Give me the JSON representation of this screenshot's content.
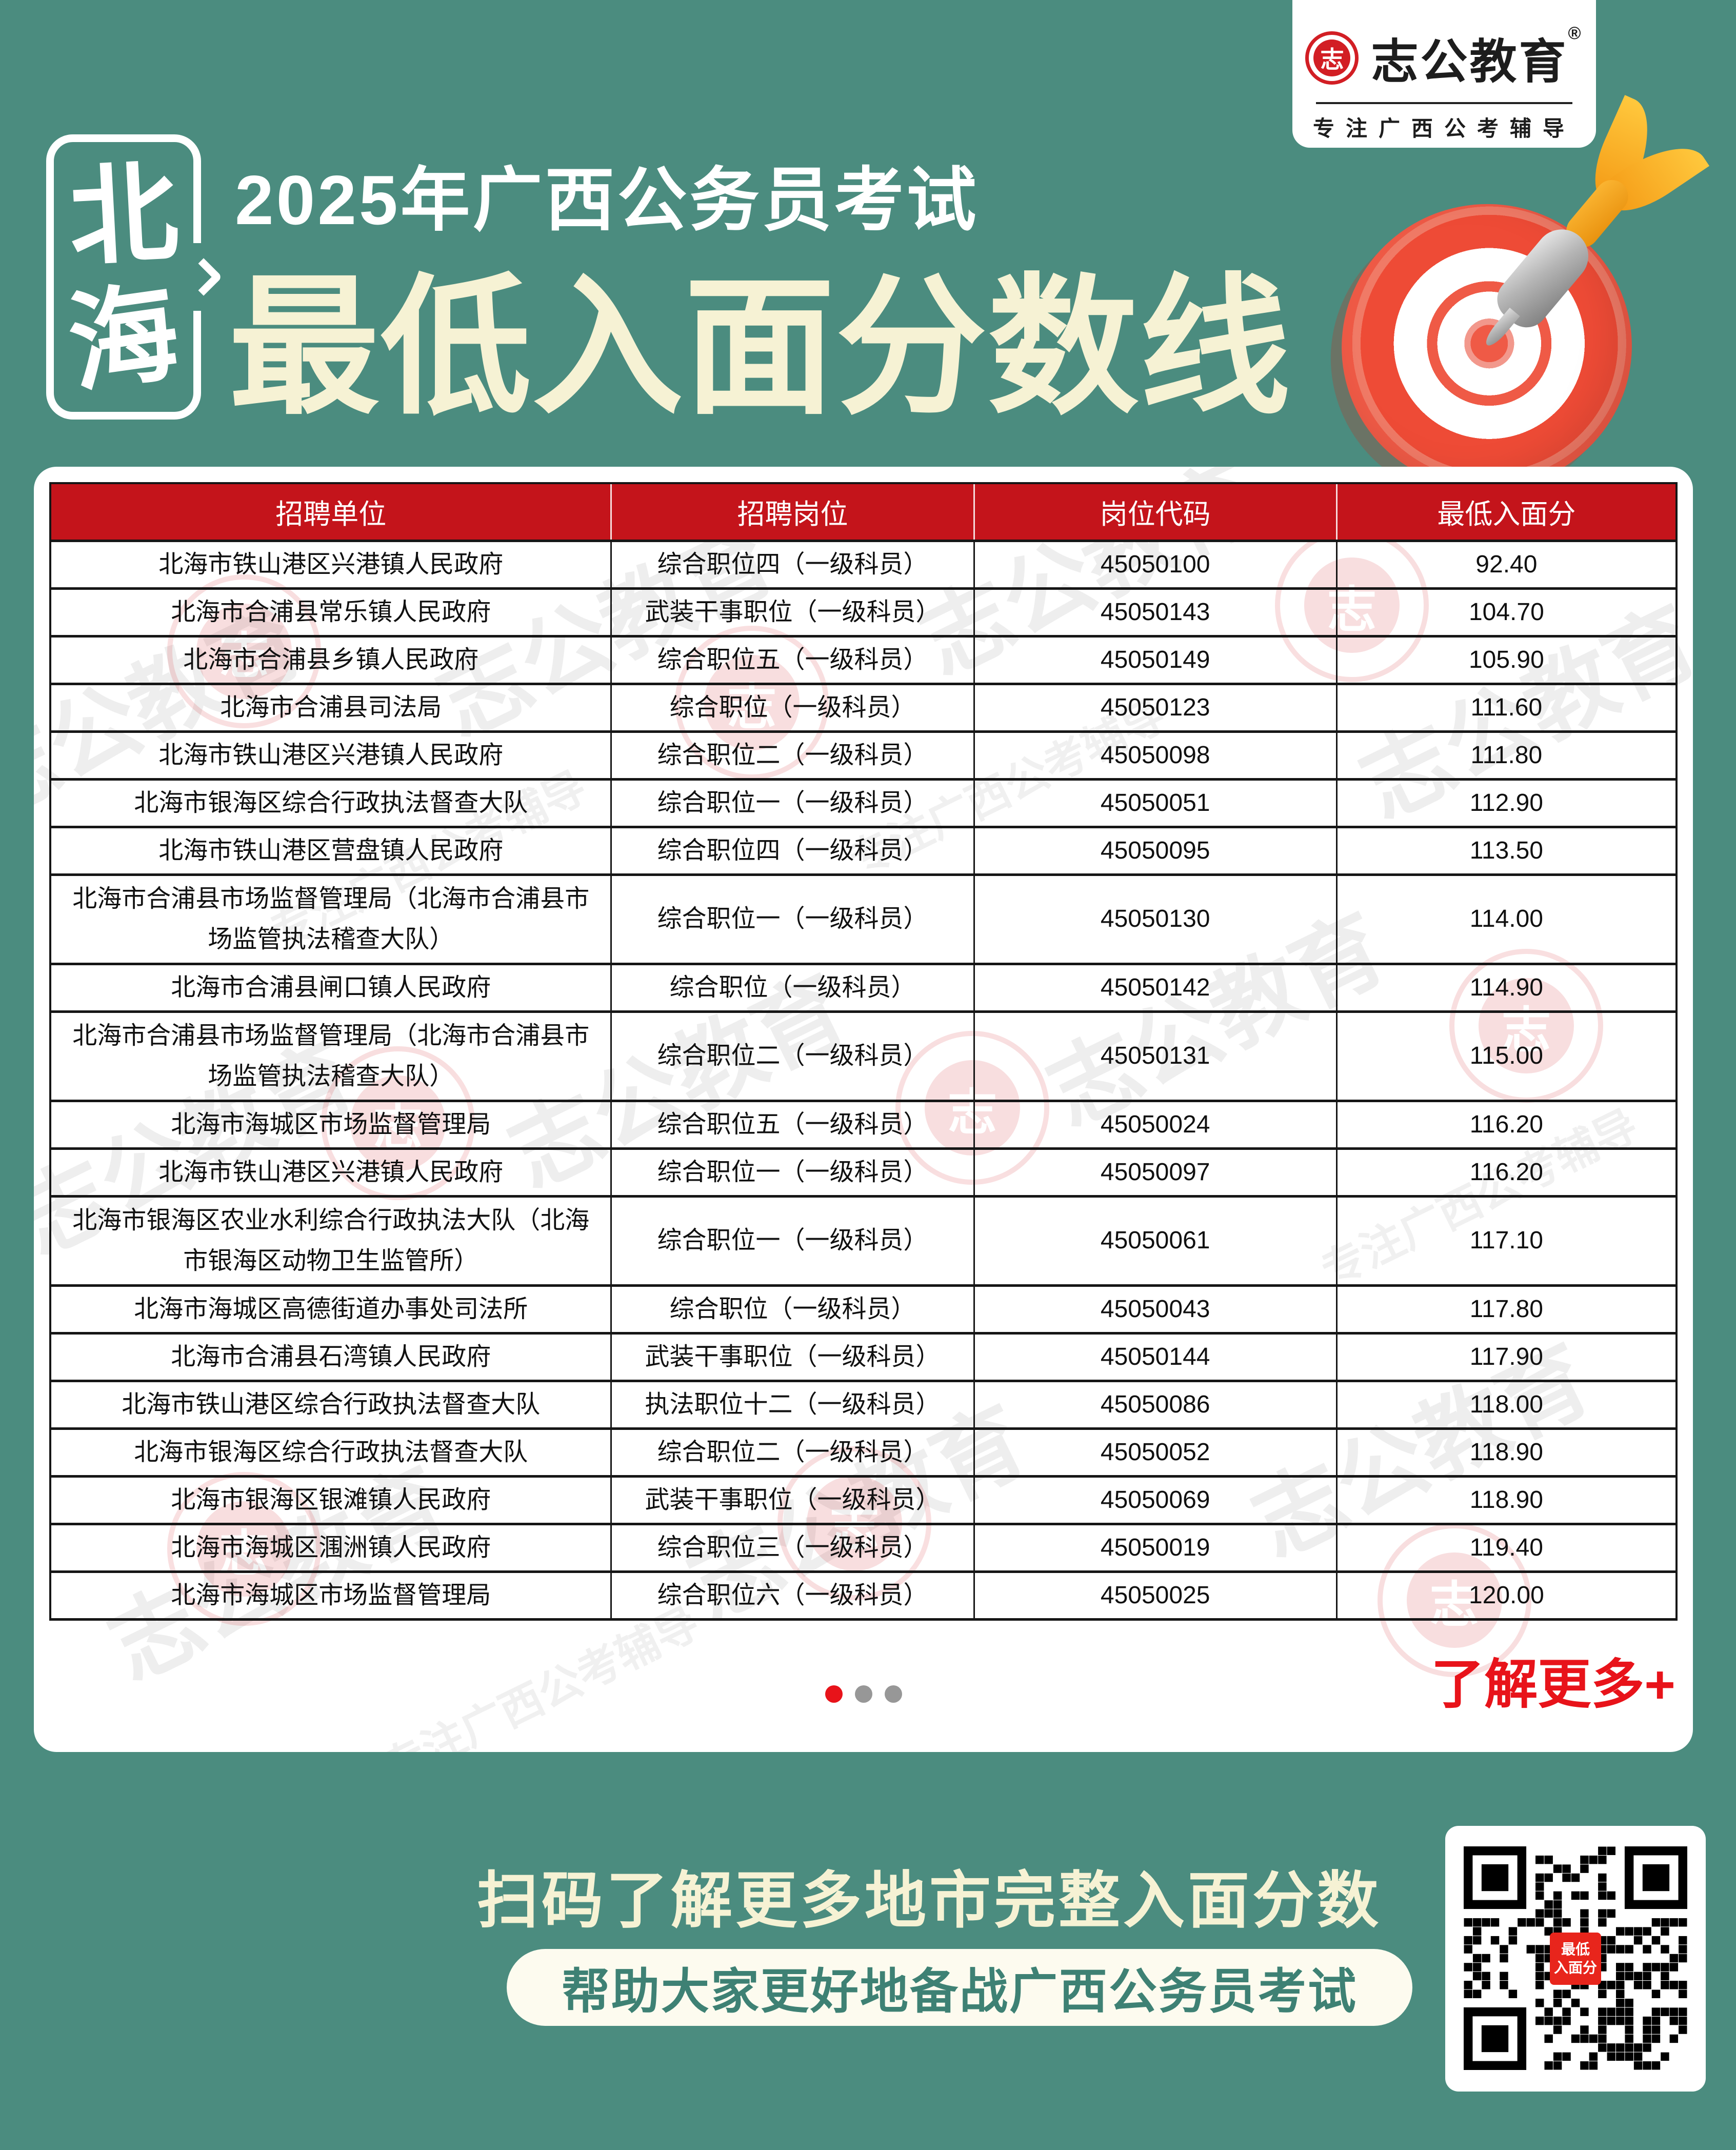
{
  "brand": {
    "name": "志公教育",
    "reg": "®",
    "tagline": "专注广西公考辅导",
    "seal_char": "志"
  },
  "header": {
    "city_chars": [
      "北",
      "海"
    ],
    "title_line1": "2025年广西公务员考试",
    "title_line2": "最低入面分数线"
  },
  "table": {
    "columns": [
      "招聘单位",
      "招聘岗位",
      "岗位代码",
      "最低入面分"
    ],
    "rows": [
      {
        "unit": "北海市铁山港区兴港镇人民政府",
        "post": "综合职位四（一级科员）",
        "code": "45050100",
        "score": "92.40"
      },
      {
        "unit": "北海市合浦县常乐镇人民政府",
        "post": "武装干事职位（一级科员）",
        "code": "45050143",
        "score": "104.70"
      },
      {
        "unit": "北海市合浦县乡镇人民政府",
        "post": "综合职位五（一级科员）",
        "code": "45050149",
        "score": "105.90"
      },
      {
        "unit": "北海市合浦县司法局",
        "post": "综合职位（一级科员）",
        "code": "45050123",
        "score": "111.60"
      },
      {
        "unit": "北海市铁山港区兴港镇人民政府",
        "post": "综合职位二（一级科员）",
        "code": "45050098",
        "score": "111.80"
      },
      {
        "unit": "北海市银海区综合行政执法督查大队",
        "post": "综合职位一（一级科员）",
        "code": "45050051",
        "score": "112.90"
      },
      {
        "unit": "北海市铁山港区营盘镇人民政府",
        "post": "综合职位四（一级科员）",
        "code": "45050095",
        "score": "113.50"
      },
      {
        "unit": "北海市合浦县市场监督管理局（北海市合浦县市场监管执法稽查大队）",
        "post": "综合职位一（一级科员）",
        "code": "45050130",
        "score": "114.00"
      },
      {
        "unit": "北海市合浦县闸口镇人民政府",
        "post": "综合职位（一级科员）",
        "code": "45050142",
        "score": "114.90"
      },
      {
        "unit": "北海市合浦县市场监督管理局（北海市合浦县市场监管执法稽查大队）",
        "post": "综合职位二（一级科员）",
        "code": "45050131",
        "score": "115.00"
      },
      {
        "unit": "北海市海城区市场监督管理局",
        "post": "综合职位五（一级科员）",
        "code": "45050024",
        "score": "116.20"
      },
      {
        "unit": "北海市铁山港区兴港镇人民政府",
        "post": "综合职位一（一级科员）",
        "code": "45050097",
        "score": "116.20"
      },
      {
        "unit": "北海市银海区农业水利综合行政执法大队（北海市银海区动物卫生监管所）",
        "post": "综合职位一（一级科员）",
        "code": "45050061",
        "score": "117.10"
      },
      {
        "unit": "北海市海城区高德街道办事处司法所",
        "post": "综合职位（一级科员）",
        "code": "45050043",
        "score": "117.80"
      },
      {
        "unit": "北海市合浦县石湾镇人民政府",
        "post": "武装干事职位（一级科员）",
        "code": "45050144",
        "score": "117.90"
      },
      {
        "unit": "北海市铁山港区综合行政执法督查大队",
        "post": "执法职位十二（一级科员）",
        "code": "45050086",
        "score": "118.00"
      },
      {
        "unit": "北海市银海区综合行政执法督查大队",
        "post": "综合职位二（一级科员）",
        "code": "45050052",
        "score": "118.90"
      },
      {
        "unit": "北海市银海区银滩镇人民政府",
        "post": "武装干事职位（一级科员）",
        "code": "45050069",
        "score": "118.90"
      },
      {
        "unit": "北海市海城区涠洲镇人民政府",
        "post": "综合职位三（一级科员）",
        "code": "45050019",
        "score": "119.40"
      },
      {
        "unit": "北海市海城区市场监督管理局",
        "post": "综合职位六（一级科员）",
        "code": "45050025",
        "score": "120.00"
      }
    ]
  },
  "pagination": {
    "total": 3,
    "active": 0
  },
  "more_label": "了解更多+",
  "footer": {
    "headline": "扫码了解更多地市完整入面分数",
    "subline": "帮助大家更好地备战广西公务员考试",
    "qr_label_line1": "最低",
    "qr_label_line2": "入面分"
  },
  "watermark": {
    "text": "志公教育",
    "tagline": "专注广西公考辅导",
    "seal_char": "志"
  },
  "colors": {
    "teal": "#4B8C7F",
    "red-header": "#C4141B",
    "red-accent": "#E8131A",
    "cream": "#F6F2D4",
    "cream-soft": "#FDFBEF",
    "pill-text": "#3E8174",
    "seal-red": "#D21E24"
  }
}
